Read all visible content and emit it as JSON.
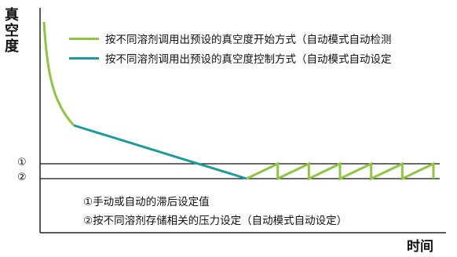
{
  "axes": {
    "y_title": "真空度",
    "x_title": "时间"
  },
  "legend": [
    {
      "label": "按不同溶剂调用出预设的真空度开始方式（自动模式自动检测",
      "color": "#8dc63f"
    },
    {
      "label": "按不同溶剂调用出预设的真空度控制方式（自动模式自动设定",
      "color": "#1a9c9c"
    }
  ],
  "markers": {
    "level1": "①",
    "level2": "②"
  },
  "notes": [
    "①手动或自动的滞后设定值",
    "②按不同溶剂存储相关的压力设定（自动模式自动设定）"
  ],
  "colors": {
    "axis": "#222222",
    "start_curve": "#8dc63f",
    "control_curve": "#1a9c9c"
  },
  "chart_data": {
    "type": "line",
    "hysteresis_cycles": 6
  }
}
